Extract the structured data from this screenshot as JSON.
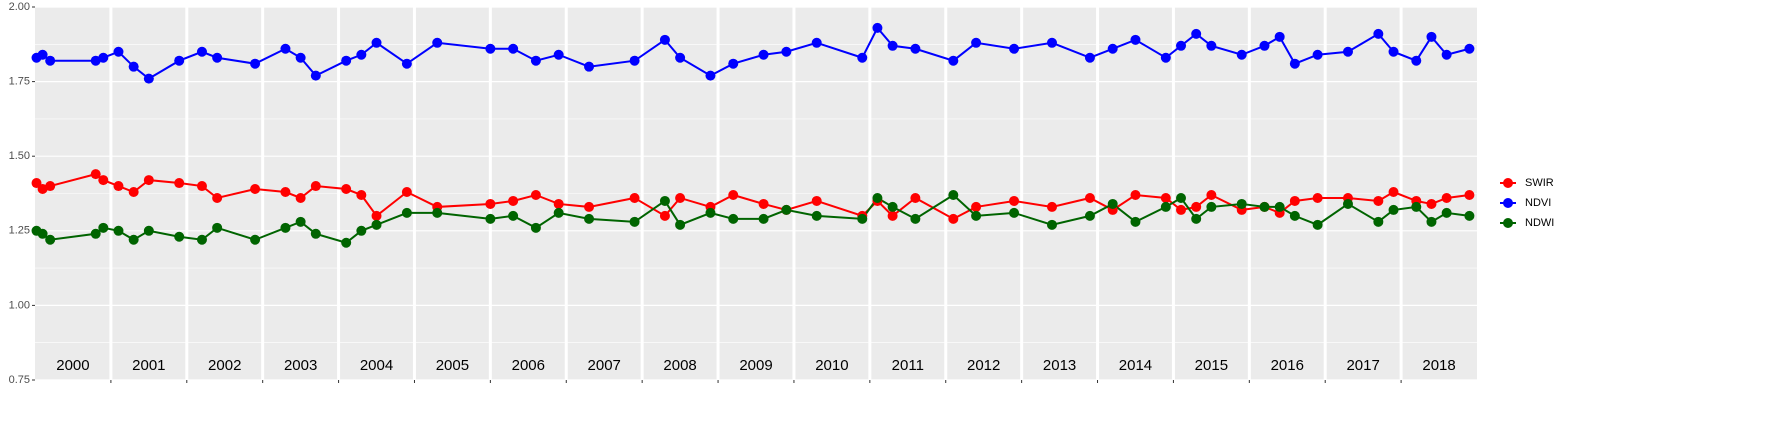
{
  "chart_data": {
    "type": "line",
    "x": [
      2000.02,
      2000.1,
      2000.2,
      2000.8,
      2000.9,
      2001.1,
      2001.3,
      2001.5,
      2001.9,
      2002.2,
      2002.4,
      2002.9,
      2003.3,
      2003.5,
      2003.7,
      2004.1,
      2004.3,
      2004.5,
      2004.9,
      2005.3,
      2006.0,
      2006.3,
      2006.6,
      2006.9,
      2007.3,
      2007.9,
      2008.3,
      2008.5,
      2008.9,
      2009.2,
      2009.6,
      2009.9,
      2010.3,
      2010.9,
      2011.1,
      2011.3,
      2011.6,
      2012.1,
      2012.4,
      2012.9,
      2013.4,
      2013.9,
      2014.2,
      2014.5,
      2014.9,
      2015.1,
      2015.3,
      2015.5,
      2015.9,
      2016.2,
      2016.4,
      2016.6,
      2016.9,
      2017.3,
      2017.7,
      2017.9,
      2018.2,
      2018.4,
      2018.6,
      2018.9
    ],
    "series": [
      {
        "name": "SWIR",
        "color": "#ff0000",
        "values": [
          1.41,
          1.39,
          1.4,
          1.44,
          1.42,
          1.4,
          1.38,
          1.42,
          1.41,
          1.4,
          1.36,
          1.39,
          1.38,
          1.36,
          1.4,
          1.39,
          1.37,
          1.3,
          1.38,
          1.33,
          1.34,
          1.35,
          1.37,
          1.34,
          1.33,
          1.36,
          1.3,
          1.36,
          1.33,
          1.37,
          1.34,
          1.32,
          1.35,
          1.3,
          1.35,
          1.3,
          1.36,
          1.29,
          1.33,
          1.35,
          1.33,
          1.36,
          1.32,
          1.37,
          1.36,
          1.32,
          1.33,
          1.37,
          1.32,
          1.33,
          1.31,
          1.35,
          1.36,
          1.36,
          1.35,
          1.38,
          1.35,
          1.34,
          1.36,
          1.37
        ]
      },
      {
        "name": "NDVI",
        "color": "#0000ff",
        "values": [
          1.83,
          1.84,
          1.82,
          1.82,
          1.83,
          1.85,
          1.8,
          1.76,
          1.82,
          1.85,
          1.83,
          1.81,
          1.86,
          1.83,
          1.77,
          1.82,
          1.84,
          1.88,
          1.81,
          1.88,
          1.86,
          1.86,
          1.82,
          1.84,
          1.8,
          1.82,
          1.89,
          1.83,
          1.77,
          1.81,
          1.84,
          1.85,
          1.88,
          1.83,
          1.93,
          1.87,
          1.86,
          1.82,
          1.88,
          1.86,
          1.88,
          1.83,
          1.86,
          1.89,
          1.83,
          1.87,
          1.91,
          1.87,
          1.84,
          1.87,
          1.9,
          1.81,
          1.84,
          1.85,
          1.91,
          1.85,
          1.82,
          1.9,
          1.84,
          1.86
        ]
      },
      {
        "name": "NDWI",
        "color": "#006400",
        "values": [
          1.25,
          1.24,
          1.22,
          1.24,
          1.26,
          1.25,
          1.22,
          1.25,
          1.23,
          1.22,
          1.26,
          1.22,
          1.26,
          1.28,
          1.24,
          1.21,
          1.25,
          1.27,
          1.31,
          1.31,
          1.29,
          1.3,
          1.26,
          1.31,
          1.29,
          1.28,
          1.35,
          1.27,
          1.31,
          1.29,
          1.29,
          1.32,
          1.3,
          1.29,
          1.36,
          1.33,
          1.29,
          1.37,
          1.3,
          1.31,
          1.27,
          1.3,
          1.34,
          1.28,
          1.33,
          1.36,
          1.29,
          1.33,
          1.34,
          1.33,
          1.33,
          1.3,
          1.27,
          1.34,
          1.28,
          1.32,
          1.33,
          1.28,
          1.31,
          1.3
        ]
      }
    ],
    "xlim": [
      2000,
      2019
    ],
    "ylim": [
      0.75,
      2.0
    ],
    "yticks": [
      {
        "value": 0.75,
        "label": "0.75"
      },
      {
        "value": 1.0,
        "label": "1.00"
      },
      {
        "value": 1.25,
        "label": "1.25"
      },
      {
        "value": 1.5,
        "label": "1.50"
      },
      {
        "value": 1.75,
        "label": "1.75"
      },
      {
        "value": 2.0,
        "label": "2.00"
      }
    ],
    "vlines": [
      2001,
      2002,
      2003,
      2004,
      2005,
      2006,
      2007,
      2008,
      2009,
      2010,
      2011,
      2012,
      2013,
      2014,
      2015,
      2016,
      2017,
      2018
    ],
    "year_labels": [
      "2000",
      "2001",
      "2002",
      "2003",
      "2004",
      "2005",
      "2006",
      "2007",
      "2008",
      "2009",
      "2010",
      "2011",
      "2012",
      "2013",
      "2014",
      "2015",
      "2016",
      "2017",
      "2018"
    ],
    "grid": true,
    "legend": "right"
  }
}
